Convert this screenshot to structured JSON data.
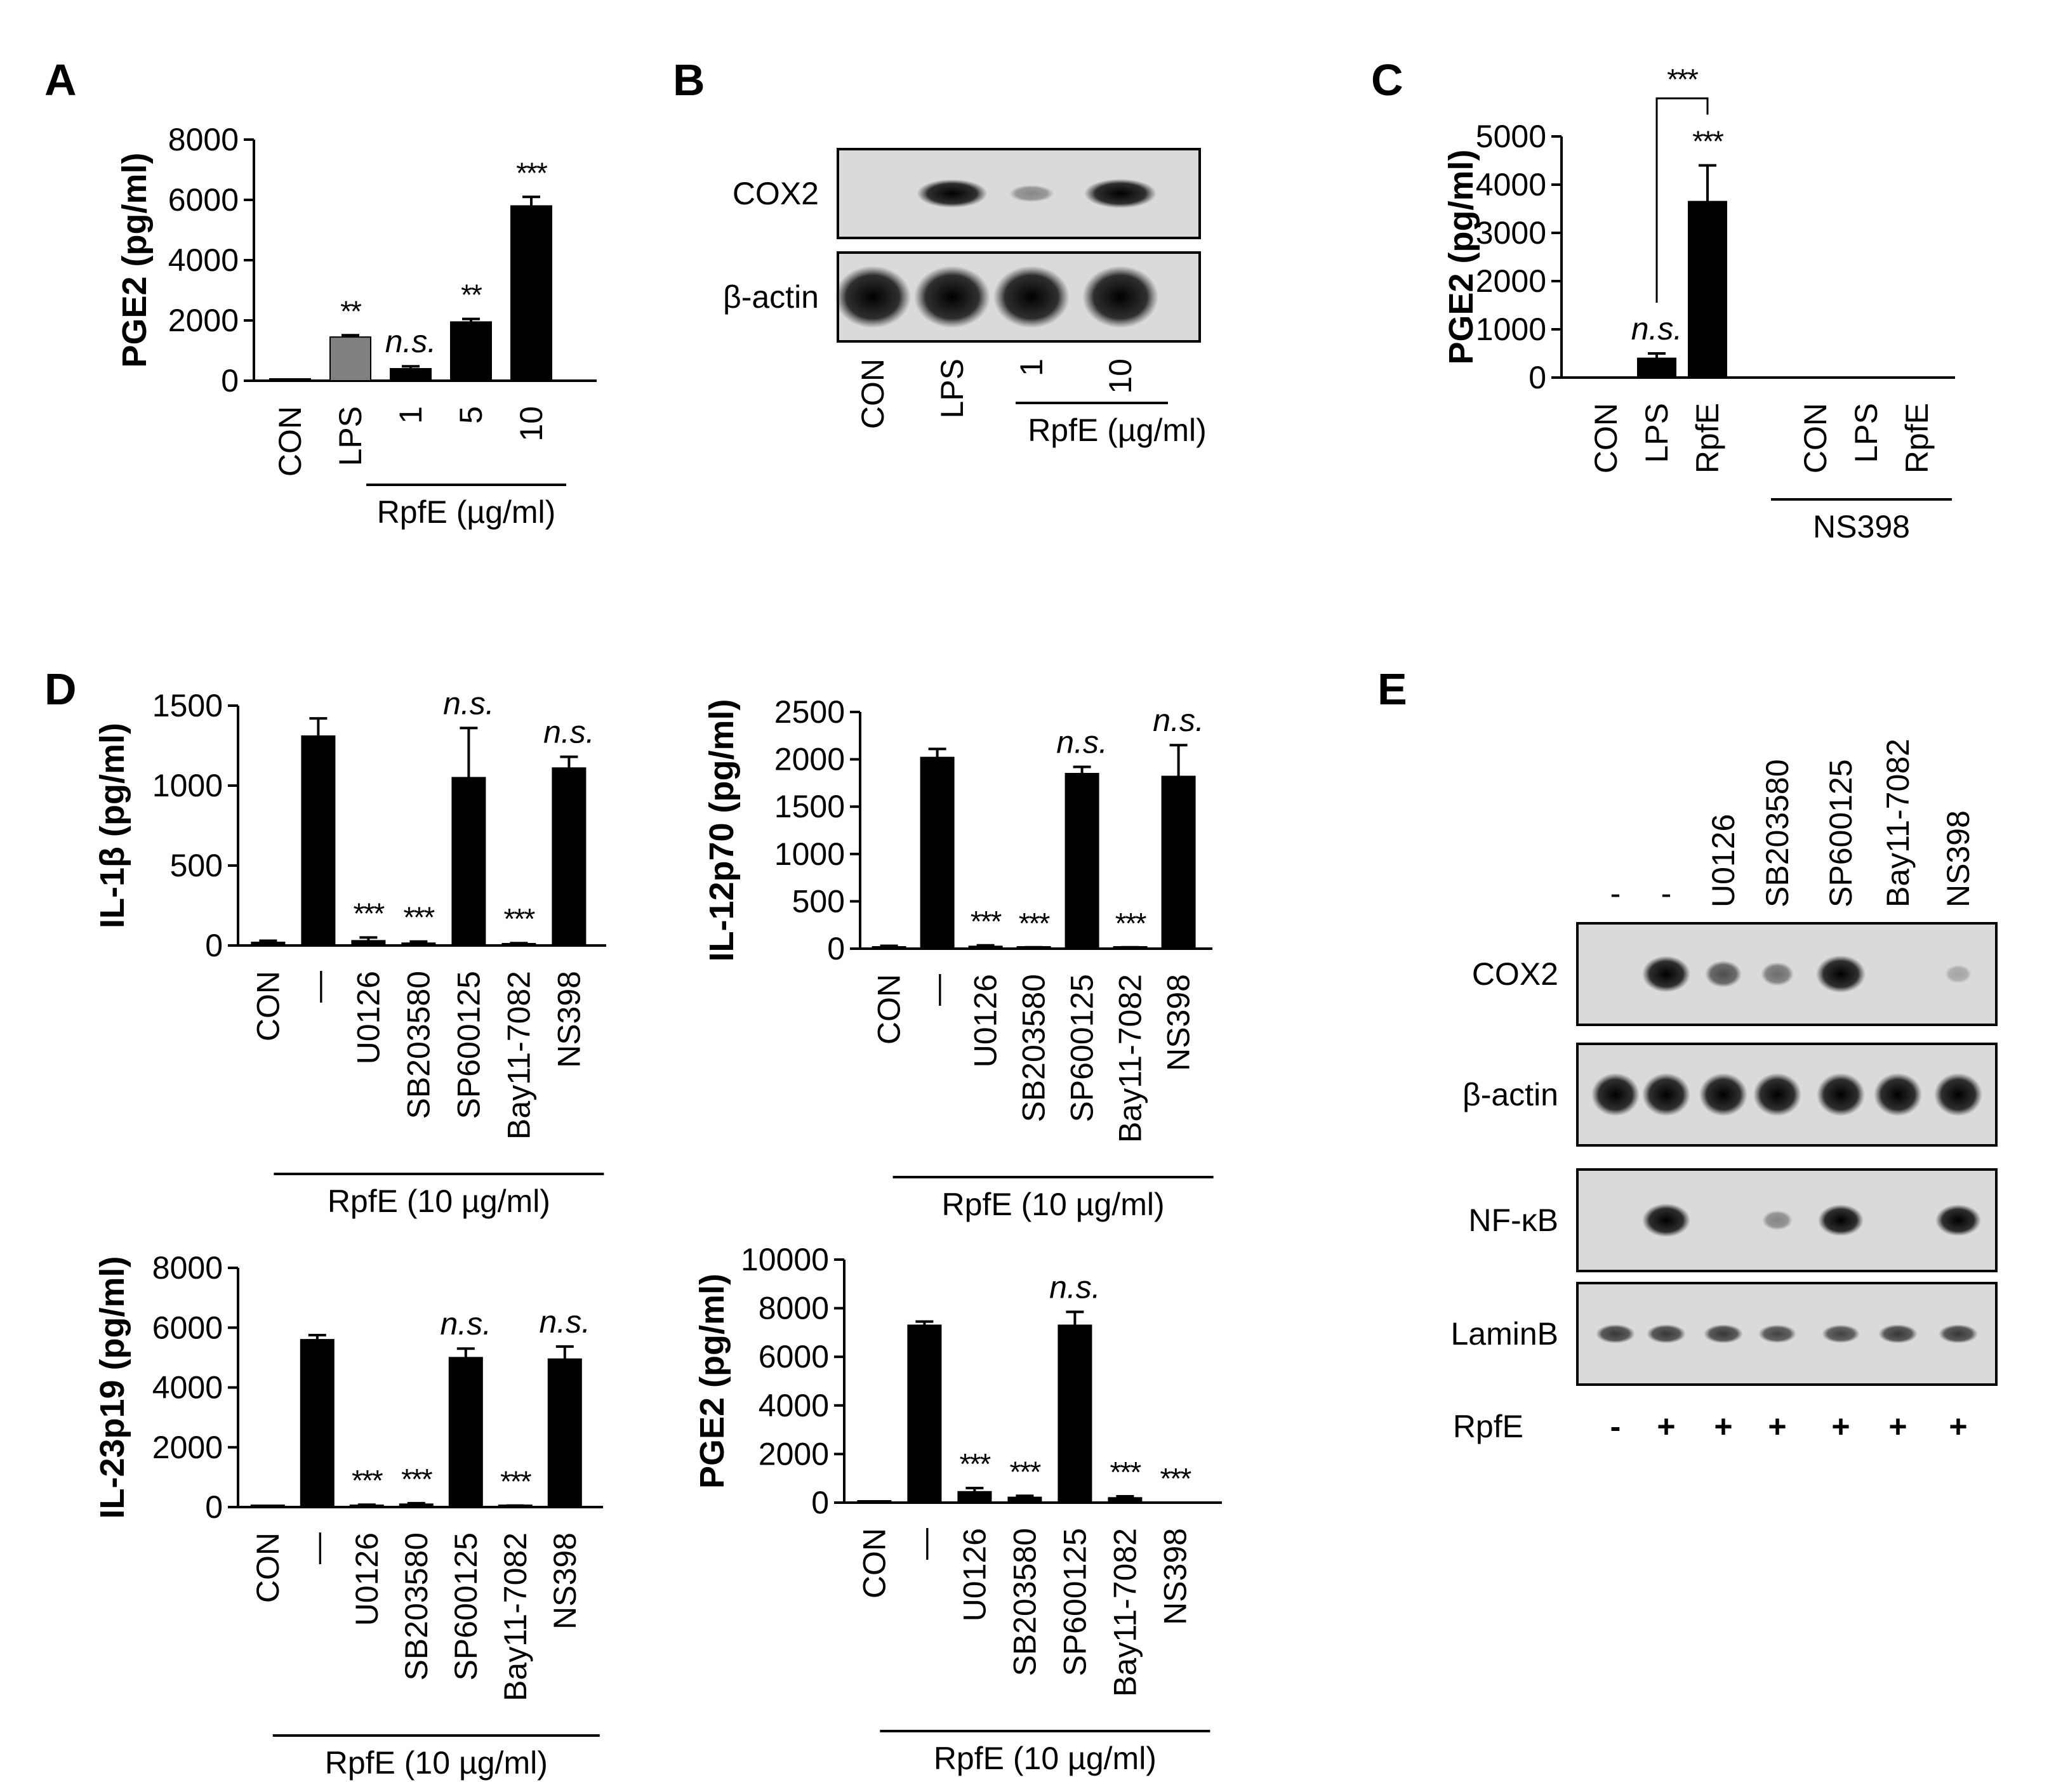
{
  "panels": [
    {
      "letter": "A"
    },
    {
      "letter": "B"
    },
    {
      "letter": "C"
    },
    {
      "letter": "D"
    },
    {
      "letter": "E"
    }
  ],
  "chart_data": [
    {
      "panel": "A",
      "type": "bar",
      "ylabel": "PGE2 (pg/ml)",
      "ylim": [
        0,
        8000
      ],
      "yticks": [
        0,
        2000,
        4000,
        6000,
        8000
      ],
      "categories": [
        "CON",
        "LPS",
        "1",
        "5",
        "10"
      ],
      "values": [
        30,
        1450,
        400,
        1950,
        5800
      ],
      "errors": [
        10,
        60,
        80,
        100,
        300
      ],
      "colors": [
        "#000000",
        "#808080",
        "#000000",
        "#000000",
        "#000000"
      ],
      "significance": [
        "",
        "**",
        "n.s.",
        "**",
        "***"
      ],
      "group_label": "RpfE (µg/ml)"
    },
    {
      "panel": "C",
      "type": "bar",
      "ylabel": "PGE2 (pg/ml)",
      "ylim": [
        0,
        5000
      ],
      "yticks": [
        0,
        1000,
        2000,
        3000,
        4000,
        5000
      ],
      "categories": [
        "CON",
        "LPS",
        "RpfE",
        "CON",
        "LPS",
        "RpfE"
      ],
      "values": [
        0,
        400,
        3650,
        0,
        0,
        0
      ],
      "errors": [
        0,
        100,
        750,
        0,
        0,
        0
      ],
      "significance": [
        "",
        "n.s.",
        "***",
        "",
        "",
        ""
      ],
      "bracket_label": "***",
      "group_label": "NS398"
    },
    {
      "panel": "D1",
      "type": "bar",
      "ylabel": "IL-1β (pg/ml)",
      "ylim": [
        0,
        1500
      ],
      "yticks": [
        0,
        500,
        1000,
        1500
      ],
      "categories": [
        "CON",
        "—",
        "U0126",
        "SB203580",
        "SP600125",
        "Bay11-7082",
        "NS398"
      ],
      "values": [
        20,
        1310,
        30,
        15,
        1050,
        10,
        1110
      ],
      "errors": [
        10,
        110,
        20,
        10,
        310,
        5,
        70
      ],
      "significance": [
        "",
        "",
        "***",
        "***",
        "n.s.",
        "***",
        "n.s."
      ],
      "group_label": "RpfE (10 µg/ml)"
    },
    {
      "panel": "D2",
      "type": "bar",
      "ylabel": "IL-12p70 (pg/ml)",
      "ylim": [
        0,
        2500
      ],
      "yticks": [
        0,
        500,
        1000,
        1500,
        2000,
        2500
      ],
      "categories": [
        "CON",
        "—",
        "U0126",
        "SB203580",
        "SP600125",
        "Bay11-7082",
        "NS398"
      ],
      "values": [
        20,
        2020,
        25,
        10,
        1850,
        10,
        1820
      ],
      "errors": [
        10,
        90,
        10,
        5,
        70,
        5,
        330
      ],
      "significance": [
        "",
        "",
        "***",
        "***",
        "n.s.",
        "***",
        "n.s."
      ],
      "group_label": "RpfE (10 µg/ml)"
    },
    {
      "panel": "D3",
      "type": "bar",
      "ylabel": "IL-23p19 (pg/ml)",
      "ylim": [
        0,
        8000
      ],
      "yticks": [
        0,
        2000,
        4000,
        6000,
        8000
      ],
      "categories": [
        "CON",
        "—",
        "U0126",
        "SB203580",
        "SP600125",
        "Bay11-7082",
        "NS398"
      ],
      "values": [
        30,
        5600,
        60,
        100,
        5000,
        40,
        4950
      ],
      "errors": [
        10,
        150,
        20,
        30,
        300,
        10,
        420
      ],
      "significance": [
        "",
        "",
        "***",
        "***",
        "n.s.",
        "***",
        "n.s."
      ],
      "group_label": "RpfE (10 µg/ml)"
    },
    {
      "panel": "D4",
      "type": "bar",
      "ylabel": "PGE2 (pg/ml)",
      "ylim": [
        0,
        10000
      ],
      "yticks": [
        0,
        2000,
        4000,
        6000,
        8000,
        10000
      ],
      "categories": [
        "CON",
        "—",
        "U0126",
        "SB203580",
        "SP600125",
        "Bay11-7082",
        "NS398"
      ],
      "values": [
        30,
        7300,
        450,
        220,
        7300,
        200,
        0
      ],
      "errors": [
        10,
        150,
        150,
        60,
        550,
        60,
        0
      ],
      "significance": [
        "",
        "",
        "***",
        "***",
        "n.s.",
        "***",
        "***"
      ],
      "group_label": "RpfE (10 µg/ml)"
    }
  ],
  "blots": {
    "B": {
      "rows": [
        "COX2",
        "β-actin"
      ],
      "lanes": [
        "CON",
        "LPS",
        "1",
        "10"
      ],
      "group_label": "RpfE (µg/ml)",
      "intensities": [
        [
          0,
          0.85,
          0.18,
          0.9
        ],
        [
          1,
          1,
          1,
          1
        ]
      ]
    },
    "E": {
      "rows": [
        "COX2",
        "β-actin",
        "NF-κB",
        "LaminB"
      ],
      "lane_headers": [
        "-",
        "-",
        "U0126",
        "SB203580",
        "SP600125",
        "Bay11-7082",
        "NS398"
      ],
      "treatment_label": "RpfE",
      "treatment_signs": [
        "-",
        "+",
        "+",
        "+",
        "+",
        "+",
        "+"
      ],
      "intensities": [
        [
          0,
          0.9,
          0.45,
          0.3,
          0.95,
          0,
          0.05
        ],
        [
          0.9,
          0.9,
          0.9,
          0.9,
          0.9,
          0.9,
          0.9
        ],
        [
          0,
          0.9,
          0,
          0.2,
          0.8,
          0,
          0.8
        ],
        [
          0.55,
          0.55,
          0.55,
          0.5,
          0.5,
          0.55,
          0.55
        ]
      ]
    }
  }
}
